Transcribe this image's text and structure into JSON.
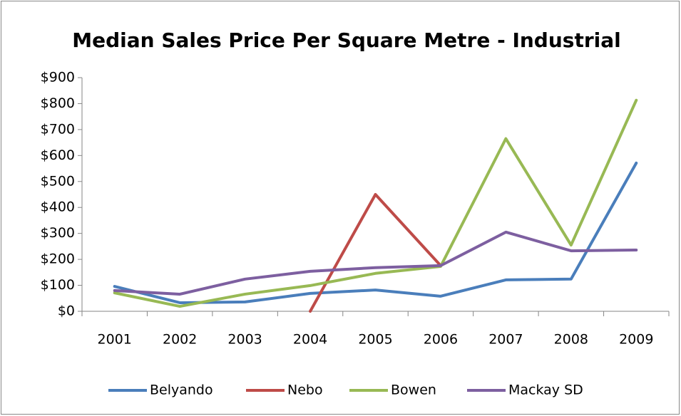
{
  "chart_data": {
    "type": "line",
    "title": "Median Sales Price Per Square Metre - Industrial",
    "categories": [
      "2001",
      "2002",
      "2003",
      "2004",
      "2005",
      "2006",
      "2007",
      "2008",
      "2009"
    ],
    "series": [
      {
        "name": "Belyando",
        "color": "#4a7ebb",
        "values": [
          96,
          33,
          36,
          69,
          82,
          58,
          121,
          124,
          571
        ]
      },
      {
        "name": "Nebo",
        "color": "#be4b48",
        "values": [
          null,
          null,
          null,
          0,
          450,
          176,
          null,
          null,
          null
        ]
      },
      {
        "name": "Bowen",
        "color": "#98b954",
        "values": [
          71,
          19,
          66,
          99,
          146,
          173,
          665,
          255,
          813
        ]
      },
      {
        "name": "Mackay SD",
        "color": "#7d5fa0",
        "values": [
          80,
          66,
          124,
          154,
          168,
          176,
          305,
          233,
          236
        ]
      }
    ],
    "ylim": [
      0,
      900
    ],
    "yticks": [
      {
        "value": 0,
        "label": "$0"
      },
      {
        "value": 100,
        "label": "$100"
      },
      {
        "value": 200,
        "label": "$200"
      },
      {
        "value": 300,
        "label": "$300"
      },
      {
        "value": 400,
        "label": "$400"
      },
      {
        "value": 500,
        "label": "$500"
      },
      {
        "value": 600,
        "label": "$600"
      },
      {
        "value": 700,
        "label": "$700"
      },
      {
        "value": 800,
        "label": "$800"
      },
      {
        "value": 900,
        "label": "$900"
      }
    ],
    "grid": false,
    "legend": "bottom"
  }
}
